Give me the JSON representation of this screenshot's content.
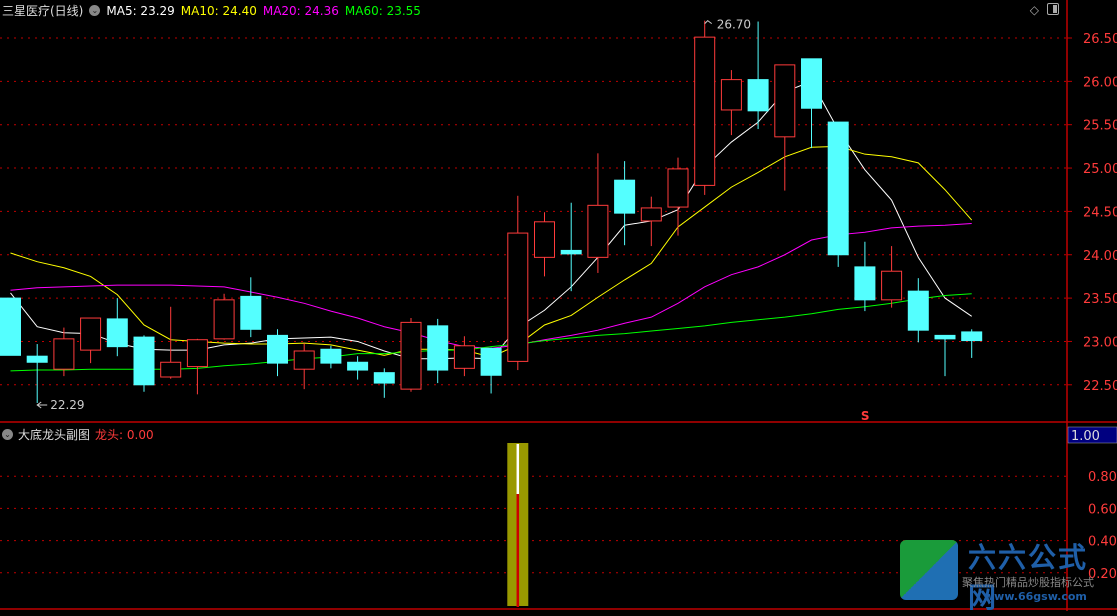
{
  "header": {
    "stock_title": "三星医疗(日线)",
    "ma_labels": [
      {
        "label": "MA5: 23.29",
        "color": "#ffffff"
      },
      {
        "label": "MA10: 24.40",
        "color": "#ffff00"
      },
      {
        "label": "MA20: 24.36",
        "color": "#ff00ff"
      },
      {
        "label": "MA60: 23.55",
        "color": "#00ff00"
      }
    ],
    "icons": [
      "diamond-icon",
      "window-layout-icon"
    ]
  },
  "subpanel": {
    "title": "大底龙头副图",
    "series_label": "龙头",
    "series_value": ": 0.00",
    "highlight_value": "1.00"
  },
  "colors": {
    "up": "#ff3b3b",
    "down": "#54ffff",
    "grid": "#c00000",
    "axis_text": "#ff3b3b",
    "bar_fill": "#999900"
  },
  "watermark": {
    "name": "六六公式网",
    "slogan": "聚焦热门精品炒股指标公式",
    "url": "www.66gsw.com"
  },
  "chart_data": [
    {
      "type": "candlestick",
      "title": "三星医疗(日线)",
      "ylim": [
        22.2,
        26.75
      ],
      "y_ticks": [
        "26.50",
        "26.00",
        "25.50",
        "25.00",
        "24.50",
        "24.00",
        "23.50",
        "23.00",
        "22.50"
      ],
      "grid": true,
      "annotations": [
        {
          "label": "26.70",
          "type": "high",
          "index": 26
        },
        {
          "label": "22.29",
          "type": "low",
          "index": 1
        },
        {
          "label": "S",
          "type": "signal",
          "index": 32
        }
      ],
      "ohlc": [
        [
          23.5,
          23.5,
          22.84,
          22.84
        ],
        [
          22.83,
          22.97,
          22.29,
          22.76
        ],
        [
          22.68,
          23.16,
          22.6,
          23.03
        ],
        [
          22.9,
          23.27,
          22.75,
          23.27
        ],
        [
          23.26,
          23.5,
          22.83,
          22.94
        ],
        [
          23.05,
          23.07,
          22.42,
          22.5
        ],
        [
          22.59,
          23.4,
          22.57,
          22.76
        ],
        [
          22.71,
          23.03,
          22.39,
          23.02
        ],
        [
          23.03,
          23.55,
          23.02,
          23.48
        ],
        [
          23.52,
          23.74,
          23.05,
          23.14
        ],
        [
          23.07,
          23.14,
          22.6,
          22.75
        ],
        [
          22.68,
          22.98,
          22.45,
          22.89
        ],
        [
          22.91,
          22.95,
          22.69,
          22.75
        ],
        [
          22.76,
          22.83,
          22.56,
          22.67
        ],
        [
          22.64,
          22.69,
          22.35,
          22.52
        ],
        [
          22.45,
          23.27,
          22.42,
          23.22
        ],
        [
          23.18,
          23.26,
          22.52,
          22.67
        ],
        [
          22.69,
          23.06,
          22.6,
          22.95
        ],
        [
          22.92,
          22.93,
          22.4,
          22.61
        ],
        [
          22.77,
          24.68,
          22.67,
          24.25
        ],
        [
          23.97,
          24.49,
          23.75,
          24.38
        ],
        [
          24.05,
          24.6,
          23.58,
          24.01
        ],
        [
          23.97,
          25.17,
          23.79,
          24.57
        ],
        [
          24.86,
          25.08,
          24.11,
          24.48
        ],
        [
          24.39,
          24.67,
          24.1,
          24.54
        ],
        [
          24.55,
          25.12,
          24.22,
          24.99
        ],
        [
          24.8,
          26.7,
          24.69,
          26.51
        ],
        [
          25.67,
          26.13,
          25.38,
          26.02
        ],
        [
          26.02,
          26.69,
          25.45,
          25.66
        ],
        [
          25.36,
          26.19,
          24.74,
          26.19
        ],
        [
          26.26,
          26.26,
          25.23,
          25.69
        ],
        [
          25.53,
          25.53,
          23.86,
          24.0
        ],
        [
          23.86,
          24.15,
          23.35,
          23.48
        ],
        [
          23.48,
          24.1,
          23.39,
          23.81
        ],
        [
          23.58,
          23.73,
          22.99,
          23.13
        ],
        [
          23.07,
          23.07,
          22.6,
          23.03
        ],
        [
          23.11,
          23.14,
          22.81,
          23.01
        ]
      ],
      "series": [
        {
          "name": "MA5",
          "color": "#ffffff",
          "values": [
            23.56,
            23.17,
            23.1,
            23.09,
            22.98,
            22.91,
            22.9,
            22.9,
            22.96,
            22.98,
            23.03,
            23.04,
            23.05,
            23.0,
            22.89,
            22.8,
            22.8,
            22.81,
            22.8,
            23.16,
            23.36,
            23.63,
            23.97,
            24.34,
            24.39,
            24.52,
            25.01,
            25.3,
            25.53,
            25.88,
            26.0,
            25.44,
            24.98,
            24.63,
            23.97,
            23.5,
            23.29
          ]
        },
        {
          "name": "MA10",
          "color": "#ffff00",
          "values": [
            24.02,
            23.92,
            23.85,
            23.75,
            23.54,
            23.19,
            23.02,
            23.0,
            22.98,
            22.97,
            22.97,
            22.98,
            22.96,
            22.9,
            22.84,
            22.91,
            22.91,
            22.9,
            22.82,
            22.96,
            23.19,
            23.3,
            23.51,
            23.71,
            23.9,
            24.32,
            24.55,
            24.78,
            24.95,
            25.13,
            25.24,
            25.25,
            25.16,
            25.13,
            25.06,
            24.75,
            24.4
          ]
        },
        {
          "name": "MA20",
          "color": "#ff00ff",
          "values": [
            23.59,
            23.62,
            23.63,
            23.64,
            23.65,
            23.65,
            23.65,
            23.64,
            23.63,
            23.57,
            23.51,
            23.44,
            23.35,
            23.27,
            23.17,
            23.1,
            23.01,
            22.94,
            22.92,
            22.96,
            23.02,
            23.07,
            23.13,
            23.21,
            23.28,
            23.44,
            23.63,
            23.77,
            23.86,
            24.0,
            24.17,
            24.23,
            24.26,
            24.31,
            24.33,
            24.34,
            24.36
          ]
        },
        {
          "name": "MA60",
          "color": "#00ff00",
          "values": [
            22.66,
            22.67,
            22.67,
            22.68,
            22.68,
            22.68,
            22.68,
            22.69,
            22.72,
            22.74,
            22.77,
            22.8,
            22.82,
            22.86,
            22.86,
            22.88,
            22.9,
            22.9,
            22.94,
            22.97,
            23.01,
            23.04,
            23.07,
            23.09,
            23.12,
            23.15,
            23.18,
            23.22,
            23.25,
            23.28,
            23.32,
            23.37,
            23.4,
            23.44,
            23.49,
            23.53,
            23.55
          ]
        }
      ]
    },
    {
      "type": "bar",
      "title": "大底龙头副图",
      "ylim": [
        0,
        1.0
      ],
      "y_ticks": [
        "0.80",
        "0.60",
        "0.40",
        "0.20"
      ],
      "grid": true,
      "series": [
        {
          "name": "龙头",
          "values": [
            0,
            0,
            0,
            0,
            0,
            0,
            0,
            0,
            0,
            0,
            0,
            0,
            0,
            0,
            0,
            0,
            0,
            0,
            0,
            1,
            0,
            0,
            0,
            0,
            0,
            0,
            0,
            0,
            0,
            0,
            0,
            0,
            0,
            0,
            0,
            0,
            0
          ]
        }
      ]
    }
  ]
}
